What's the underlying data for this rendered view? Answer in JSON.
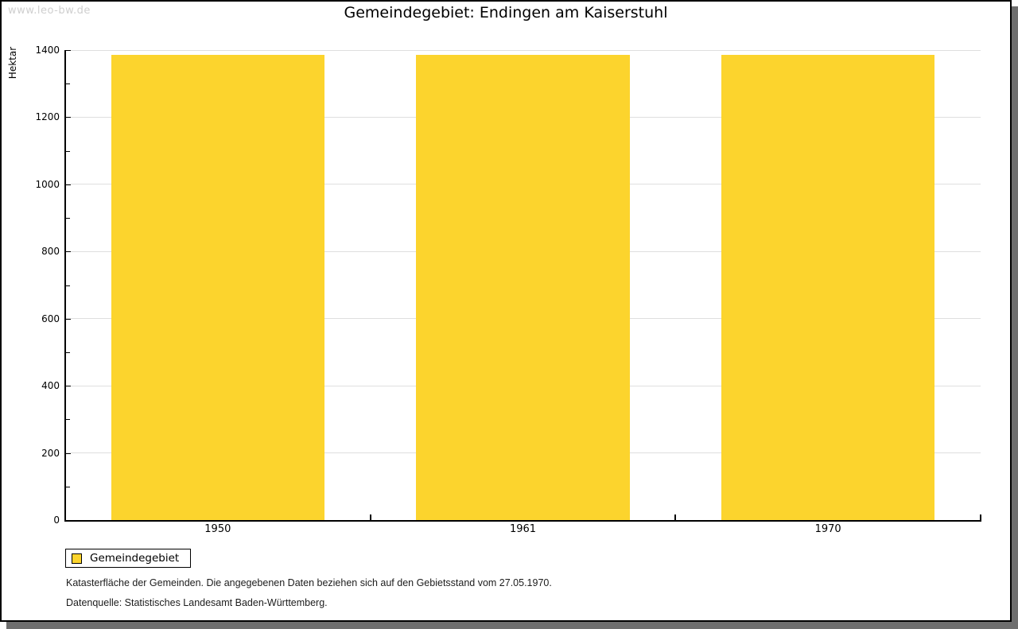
{
  "watermark": "www.leo-bw.de",
  "header": {
    "title": "Gemeindegebiet: Endingen am Kaiserstuhl"
  },
  "legend": {
    "label": "Gemeindegebiet"
  },
  "footer": {
    "line1": "Katasterfläche der Gemeinden. Die angegebenen Daten beziehen sich auf den Gebietsstand vom 27.05.1970.",
    "line2": "Datenquelle: Statistisches Landesamt Baden-Württemberg."
  },
  "colors": {
    "bar": "#fcd42d",
    "grid": "#dfdfdf",
    "axis": "#000000",
    "shadow": "#6e6e6e",
    "watermark": "#cfcfcf"
  },
  "chart_data": {
    "type": "bar",
    "categories": [
      "1950",
      "1961",
      "1970"
    ],
    "series": [
      {
        "name": "Gemeindegebiet",
        "values": [
          1385,
          1385,
          1385
        ]
      }
    ],
    "title": "Gemeindegebiet: Endingen am Kaiserstuhl",
    "xlabel": "",
    "ylabel": "Hektar",
    "ylim": [
      0,
      1400
    ],
    "ytick_step": 200,
    "yminor_step": 100,
    "ytick_labels": [
      "0",
      "200",
      "400",
      "600",
      "800",
      "1000",
      "1200",
      "1400"
    ],
    "grid": true,
    "legend_position": "bottom-left",
    "bar_color": "#fcd42d"
  }
}
